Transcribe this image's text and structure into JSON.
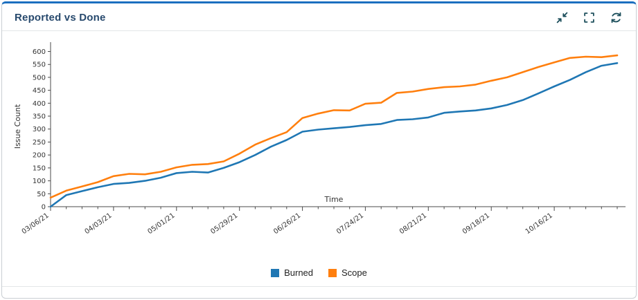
{
  "panel": {
    "title": "Reported vs Done",
    "accent_color": "#1b6fbf",
    "toolbar": {
      "collapse_icon": "collapse-arrows-icon",
      "fullscreen_icon": "fullscreen-brackets-icon",
      "refresh_icon": "refresh-icon"
    }
  },
  "chart_data": {
    "type": "line",
    "title": "Reported vs Done",
    "xlabel": "Time",
    "ylabel": "Issue Count",
    "ylim": [
      0,
      620
    ],
    "yticks": [
      0,
      50,
      100,
      150,
      200,
      250,
      300,
      350,
      400,
      450,
      500,
      550,
      600
    ],
    "x_tick_labels": [
      "03/06/21",
      "04/03/21",
      "05/01/21",
      "05/29/21",
      "06/26/21",
      "07/24/21",
      "08/21/21",
      "09/18/21",
      "10/16/21"
    ],
    "x_tick_indices": [
      0,
      4,
      8,
      12,
      16,
      20,
      24,
      28,
      32
    ],
    "num_points": 37,
    "grid": false,
    "legend_position": "bottom",
    "series": [
      {
        "name": "Burned",
        "color": "#1f77b4",
        "values": [
          0,
          45,
          60,
          75,
          88,
          92,
          100,
          112,
          130,
          135,
          132,
          150,
          172,
          200,
          232,
          258,
          290,
          298,
          303,
          308,
          315,
          320,
          335,
          338,
          345,
          363,
          368,
          372,
          380,
          393,
          412,
          438,
          465,
          490,
          520,
          545,
          555
        ]
      },
      {
        "name": "Scope",
        "color": "#ff7f0e",
        "values": [
          35,
          62,
          78,
          95,
          118,
          127,
          125,
          135,
          152,
          162,
          165,
          175,
          205,
          240,
          265,
          288,
          343,
          360,
          373,
          372,
          398,
          402,
          440,
          445,
          455,
          462,
          465,
          472,
          487,
          500,
          520,
          540,
          558,
          575,
          580,
          578,
          585
        ]
      }
    ]
  }
}
